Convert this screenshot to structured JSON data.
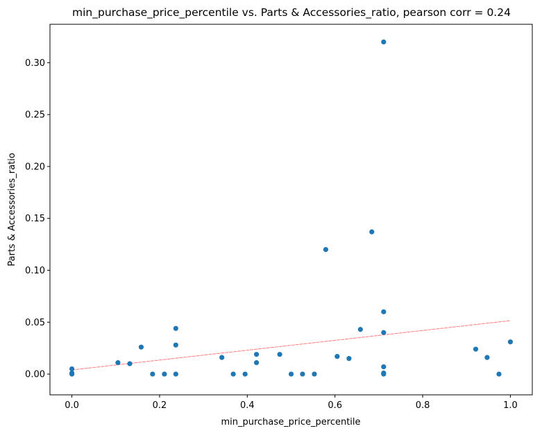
{
  "chart_data": {
    "type": "scatter",
    "title": "min_purchase_price_percentile vs. Parts & Accessories_ratio, pearson corr = 0.24",
    "xlabel": "min_purchase_price_percentile",
    "ylabel": "Parts & Accessories_ratio",
    "xlim": [
      -0.05,
      1.05
    ],
    "ylim": [
      -0.02,
      0.337
    ],
    "xticks": [
      0.0,
      0.2,
      0.4,
      0.6,
      0.8,
      1.0
    ],
    "xtick_labels": [
      "0.0",
      "0.2",
      "0.4",
      "0.6",
      "0.8",
      "1.0"
    ],
    "yticks": [
      0.0,
      0.05,
      0.1,
      0.15,
      0.2,
      0.25,
      0.3
    ],
    "ytick_labels": [
      "0.00",
      "0.05",
      "0.10",
      "0.15",
      "0.20",
      "0.25",
      "0.30"
    ],
    "grid": false,
    "point_color": "#1f77b4",
    "trend_color": "#ff6b6b",
    "points": [
      {
        "x": 0.0,
        "y": 0.005
      },
      {
        "x": 0.0,
        "y": 0.001
      },
      {
        "x": 0.0,
        "y": 0.0
      },
      {
        "x": 0.105,
        "y": 0.011
      },
      {
        "x": 0.132,
        "y": 0.01
      },
      {
        "x": 0.158,
        "y": 0.026
      },
      {
        "x": 0.184,
        "y": 0.0
      },
      {
        "x": 0.211,
        "y": 0.0
      },
      {
        "x": 0.237,
        "y": 0.044
      },
      {
        "x": 0.237,
        "y": 0.028
      },
      {
        "x": 0.237,
        "y": 0.0
      },
      {
        "x": 0.342,
        "y": 0.016
      },
      {
        "x": 0.368,
        "y": 0.0
      },
      {
        "x": 0.395,
        "y": 0.0
      },
      {
        "x": 0.421,
        "y": 0.019
      },
      {
        "x": 0.421,
        "y": 0.011
      },
      {
        "x": 0.474,
        "y": 0.019
      },
      {
        "x": 0.5,
        "y": 0.0
      },
      {
        "x": 0.526,
        "y": 0.0
      },
      {
        "x": 0.553,
        "y": 0.0
      },
      {
        "x": 0.579,
        "y": 0.12
      },
      {
        "x": 0.605,
        "y": 0.017
      },
      {
        "x": 0.632,
        "y": 0.015
      },
      {
        "x": 0.658,
        "y": 0.043
      },
      {
        "x": 0.684,
        "y": 0.137
      },
      {
        "x": 0.711,
        "y": 0.32
      },
      {
        "x": 0.711,
        "y": 0.06
      },
      {
        "x": 0.711,
        "y": 0.04
      },
      {
        "x": 0.711,
        "y": 0.007
      },
      {
        "x": 0.711,
        "y": 0.001
      },
      {
        "x": 0.711,
        "y": 0.0
      },
      {
        "x": 0.921,
        "y": 0.024
      },
      {
        "x": 0.947,
        "y": 0.016
      },
      {
        "x": 0.974,
        "y": 0.0
      },
      {
        "x": 1.0,
        "y": 0.031
      }
    ],
    "trendline": {
      "x": [
        0.0,
        1.0
      ],
      "y": [
        0.004,
        0.0515
      ]
    }
  }
}
